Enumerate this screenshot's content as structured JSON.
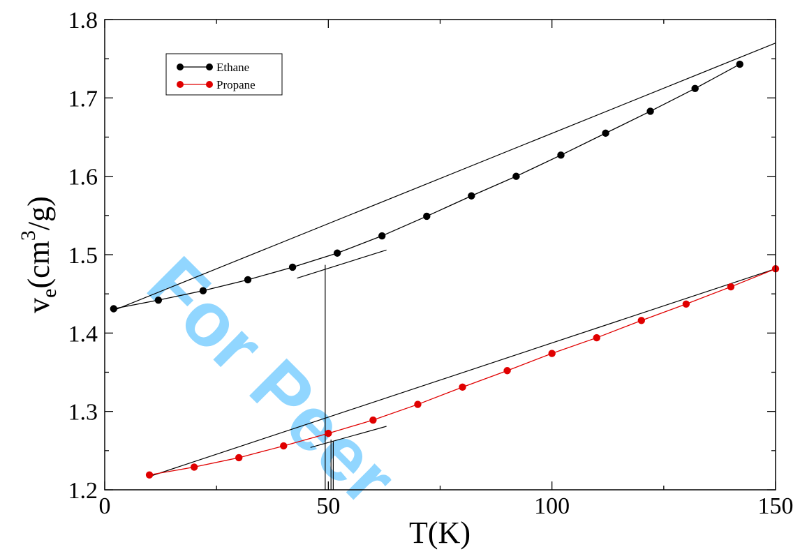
{
  "watermark": "For Peer",
  "chart_data": {
    "type": "line",
    "xlabel": "T(K)",
    "ylabel": "v_e(cm^3/g)",
    "ylabel_parts": {
      "v": "v",
      "sub": "e",
      "mid": "(cm",
      "sup": "3",
      "end": "/g)"
    },
    "xlim": [
      0,
      150
    ],
    "ylim": [
      1.2,
      1.8
    ],
    "xticks": [
      0,
      50,
      100,
      150
    ],
    "yticks": [
      1.2,
      1.3,
      1.4,
      1.5,
      1.6,
      1.7,
      1.8
    ],
    "xtick_labels": [
      "0",
      "50",
      "100",
      "150"
    ],
    "ytick_labels": [
      "1.2",
      "1.3",
      "1.4",
      "1.5",
      "1.6",
      "1.7",
      "1.8"
    ],
    "grid": false,
    "legend_position": "top-left",
    "series": [
      {
        "name": "Ethane",
        "color": "#000000",
        "x": [
          2,
          12,
          22,
          32,
          42,
          52,
          62,
          72,
          82,
          92,
          102,
          112,
          122,
          132,
          142
        ],
        "y": [
          1.431,
          1.442,
          1.454,
          1.468,
          1.484,
          1.502,
          1.524,
          1.549,
          1.575,
          1.6,
          1.627,
          1.655,
          1.683,
          1.712,
          1.743
        ]
      },
      {
        "name": "Propane",
        "color": "#e00000",
        "x": [
          10,
          20,
          30,
          40,
          50,
          60,
          70,
          80,
          90,
          100,
          110,
          120,
          130,
          140,
          150
        ],
        "y": [
          1.219,
          1.229,
          1.241,
          1.256,
          1.272,
          1.289,
          1.309,
          1.331,
          1.352,
          1.374,
          1.394,
          1.416,
          1.437,
          1.459,
          1.482
        ]
      }
    ],
    "fit_lines": [
      {
        "x": [
          2,
          150
        ],
        "y": [
          1.429,
          1.77
        ]
      },
      {
        "x": [
          10,
          150
        ],
        "y": [
          1.217,
          1.482
        ]
      },
      {
        "x": [
          43,
          63
        ],
        "y": [
          1.47,
          1.506
        ]
      },
      {
        "x": [
          46,
          63
        ],
        "y": [
          1.254,
          1.281
        ]
      }
    ],
    "vertical_markers": [
      {
        "x": 49.3,
        "y_from": 1.2,
        "y_to": 1.487
      },
      {
        "x": 50.6,
        "y_from": 1.2,
        "y_to": 1.264
      },
      {
        "x": 51.1,
        "y_from": 1.2,
        "y_to": 1.262
      }
    ]
  }
}
